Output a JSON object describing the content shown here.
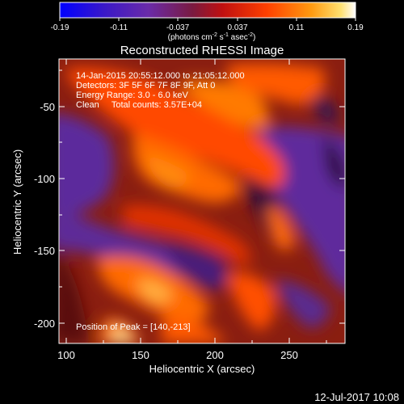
{
  "colorbar": {
    "ticks": [
      "-0.19",
      "-0.11",
      "-0.037",
      "0.037",
      "0.11",
      "0.19"
    ],
    "units_prefix": "(photons cm",
    "units_e1": "-2",
    "units_mid1": " s",
    "units_e2": "-1",
    "units_mid2": " asec",
    "units_e3": "-2",
    "units_suffix": ")"
  },
  "info": {
    "line1": "14-Jan-2015 20:55:12.000 to 21:05:12.000",
    "line2": "Detectors: 3F 5F 6F 7F 8F 9F, Att 0",
    "line3": "Energy Range: 3.0 - 6.0 keV",
    "line4": "Clean     Total counts: 3.57E+04",
    "peak": "Position of Peak = [140,-213]"
  },
  "footer": {
    "date": "12-Jul-2017 10:08"
  },
  "chart_data": {
    "type": "heatmap",
    "title": "Reconstructed RHESSI Image",
    "xlabel": "Heliocentric X (arcsec)",
    "ylabel": "Heliocentric Y (arcsec)",
    "xlim": [
      95,
      287
    ],
    "ylim": [
      -211,
      -20
    ],
    "xticks": [
      100,
      150,
      200,
      250
    ],
    "yticks": [
      -50,
      -100,
      -150,
      -200
    ],
    "color_range": [
      -0.19,
      0.19
    ],
    "colormap": [
      "#0000ff",
      "#6a2ba8",
      "#7a1a18",
      "#e62000",
      "#ff7f00",
      "#ffff80",
      "#ffffff"
    ],
    "peak": [
      140,
      -213
    ]
  }
}
